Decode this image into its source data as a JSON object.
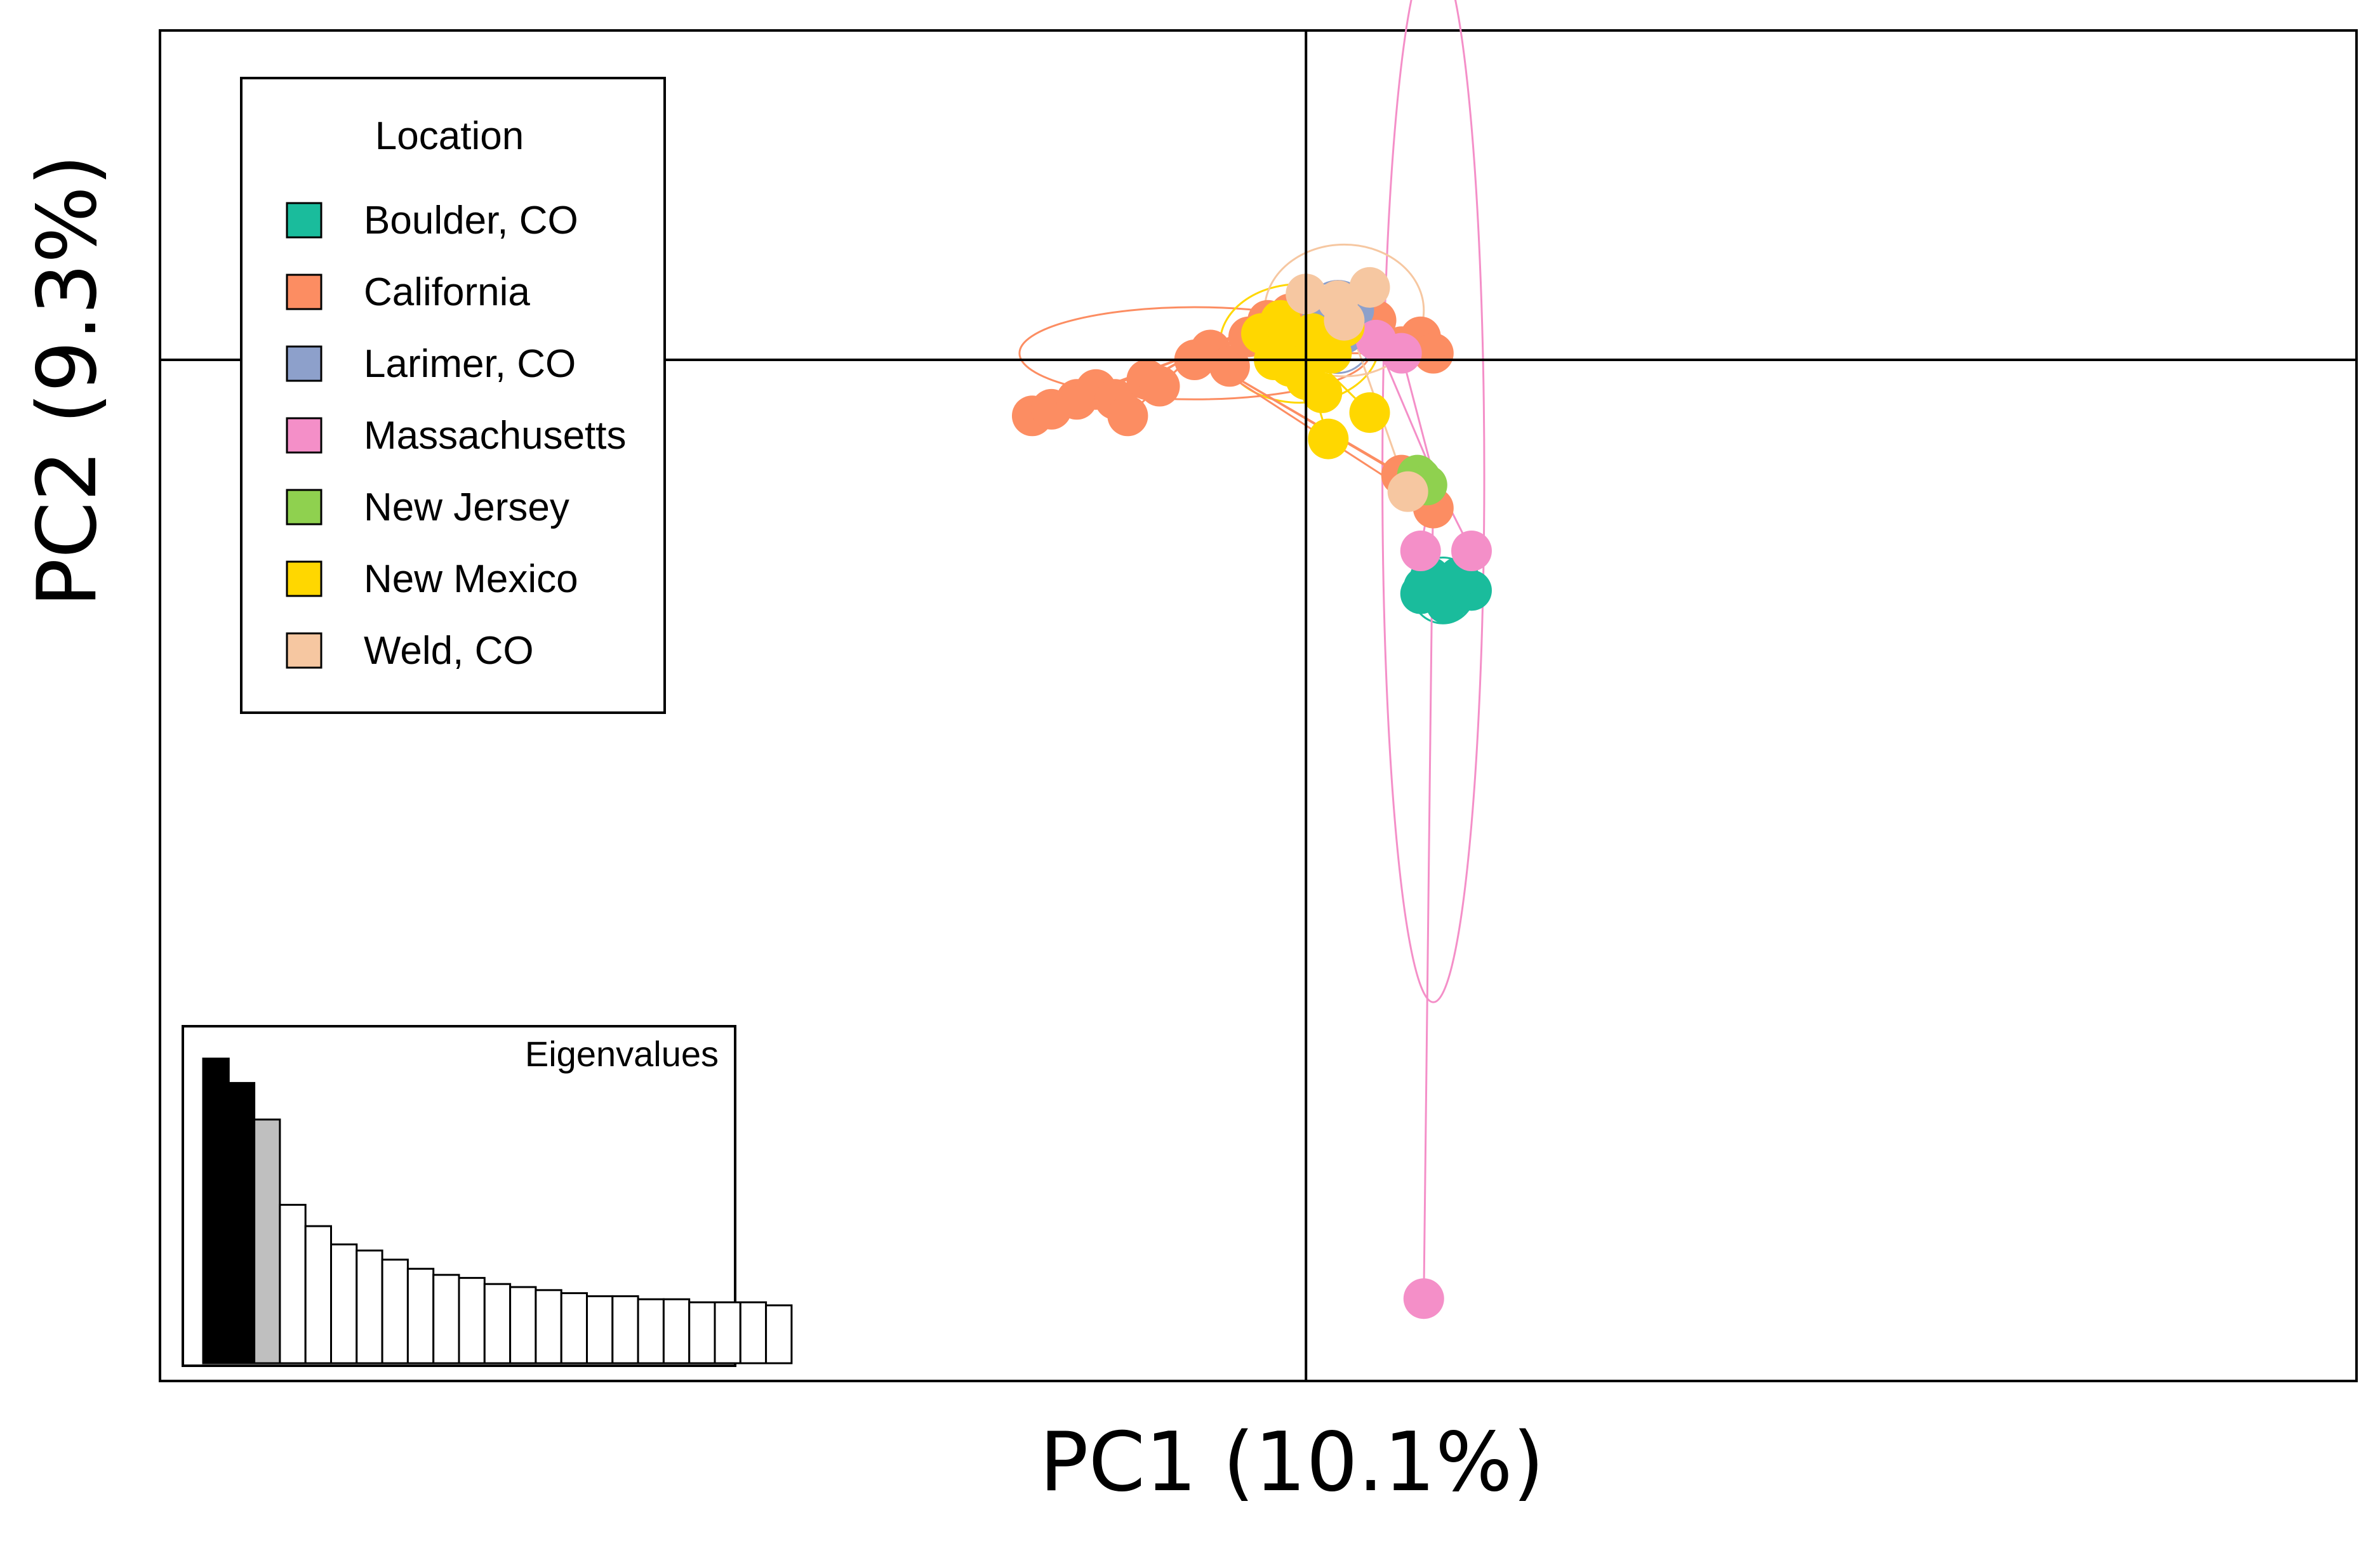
{
  "chart_data": {
    "type": "scatter",
    "subtype": "DAPC scatter with group ellipses and minimum spanning connections",
    "xlabel": "PC1 (10.1%)",
    "ylabel": "PC2 (9.3%)",
    "xlim": [
      -3.6,
      3.3
    ],
    "ylim": [
      -3.1,
      1.0
    ],
    "axes_cross": [
      0,
      0
    ],
    "grid": false,
    "legend": {
      "title": "Location",
      "placement": "top-left"
    },
    "series": [
      {
        "name": "Boulder, CO",
        "color": "#1abc9c",
        "center": [
          0.43,
          -0.7
        ],
        "ellipse": {
          "rx": 0.1,
          "ry": 0.1
        },
        "points": [
          [
            0.36,
            -0.71
          ],
          [
            0.41,
            -0.68
          ],
          [
            0.46,
            -0.72
          ],
          [
            0.5,
            -0.69
          ],
          [
            0.39,
            -0.66
          ],
          [
            0.44,
            -0.74
          ],
          [
            0.52,
            -0.7
          ],
          [
            0.37,
            -0.69
          ],
          [
            0.48,
            -0.66
          ]
        ]
      },
      {
        "name": "California",
        "color": "#fc8d62",
        "center": [
          -0.35,
          0.02
        ],
        "ellipse": {
          "rx": 0.55,
          "ry": 0.14
        },
        "points": [
          [
            -0.86,
            -0.17
          ],
          [
            -0.8,
            -0.15
          ],
          [
            -0.72,
            -0.12
          ],
          [
            -0.66,
            -0.09
          ],
          [
            -0.6,
            -0.12
          ],
          [
            -0.56,
            -0.17
          ],
          [
            -0.5,
            -0.06
          ],
          [
            -0.46,
            -0.08
          ],
          [
            -0.35,
            0.0
          ],
          [
            -0.3,
            0.03
          ],
          [
            -0.24,
            -0.02
          ],
          [
            -0.18,
            0.07
          ],
          [
            -0.12,
            0.12
          ],
          [
            -0.05,
            0.14
          ],
          [
            0.02,
            0.16
          ],
          [
            0.1,
            0.14
          ],
          [
            0.16,
            0.16
          ],
          [
            0.22,
            0.12
          ],
          [
            0.3,
            0.04
          ],
          [
            0.36,
            0.07
          ],
          [
            0.4,
            0.02
          ],
          [
            0.3,
            -0.35
          ],
          [
            0.36,
            -0.38
          ],
          [
            0.4,
            -0.45
          ]
        ]
      },
      {
        "name": "Larimer, CO",
        "color": "#8da0cb",
        "center": [
          0.1,
          0.1
        ],
        "ellipse": {
          "rx": 0.12,
          "ry": 0.14
        },
        "points": [
          [
            0.05,
            0.12
          ],
          [
            0.12,
            0.08
          ],
          [
            0.15,
            0.15
          ]
        ]
      },
      {
        "name": "Massachusetts",
        "color": "#f48fc8",
        "center": [
          0.4,
          -0.35
        ],
        "ellipse": {
          "rx": 0.16,
          "ry": 1.6
        },
        "points": [
          [
            0.22,
            0.06
          ],
          [
            0.3,
            0.02
          ],
          [
            0.36,
            -0.58
          ],
          [
            0.52,
            -0.58
          ],
          [
            0.37,
            -2.85
          ]
        ]
      },
      {
        "name": "New Jersey",
        "color": "#8fd14f",
        "center": [
          0.36,
          -0.36
        ],
        "ellipse": {
          "rx": 0.06,
          "ry": 0.06
        },
        "points": [
          [
            0.35,
            -0.35
          ],
          [
            0.38,
            -0.38
          ]
        ]
      },
      {
        "name": "New Mexico",
        "color": "#ffd700",
        "center": [
          -0.02,
          0.05
        ],
        "ellipse": {
          "rx": 0.25,
          "ry": 0.18
        },
        "points": [
          [
            -0.14,
            0.08
          ],
          [
            -0.08,
            0.12
          ],
          [
            -0.02,
            0.04
          ],
          [
            0.02,
            0.08
          ],
          [
            0.08,
            0.02
          ],
          [
            -0.05,
            -0.02
          ],
          [
            0.0,
            -0.06
          ],
          [
            0.05,
            -0.1
          ],
          [
            -0.1,
            0.0
          ],
          [
            0.12,
            0.1
          ],
          [
            0.2,
            -0.16
          ],
          [
            0.07,
            -0.24
          ]
        ]
      },
      {
        "name": "Weld, CO",
        "color": "#f6c7a1",
        "center": [
          0.12,
          0.15
        ],
        "ellipse": {
          "rx": 0.25,
          "ry": 0.2
        },
        "points": [
          [
            0.0,
            0.2
          ],
          [
            0.1,
            0.18
          ],
          [
            0.2,
            0.22
          ],
          [
            0.12,
            0.12
          ],
          [
            0.32,
            -0.4
          ]
        ]
      }
    ],
    "inset": {
      "title": "Eigenvalues",
      "type": "bar",
      "values": [
        1.0,
        0.92,
        0.8,
        0.52,
        0.45,
        0.39,
        0.37,
        0.34,
        0.31,
        0.29,
        0.28,
        0.26,
        0.25,
        0.24,
        0.23,
        0.22,
        0.22,
        0.21,
        0.21,
        0.2,
        0.2,
        0.2,
        0.19
      ],
      "retained": 2,
      "highlighted": 1,
      "colors": {
        "retained": "#000000",
        "highlighted": "#bfbfbf",
        "other": "#ffffff"
      }
    }
  }
}
